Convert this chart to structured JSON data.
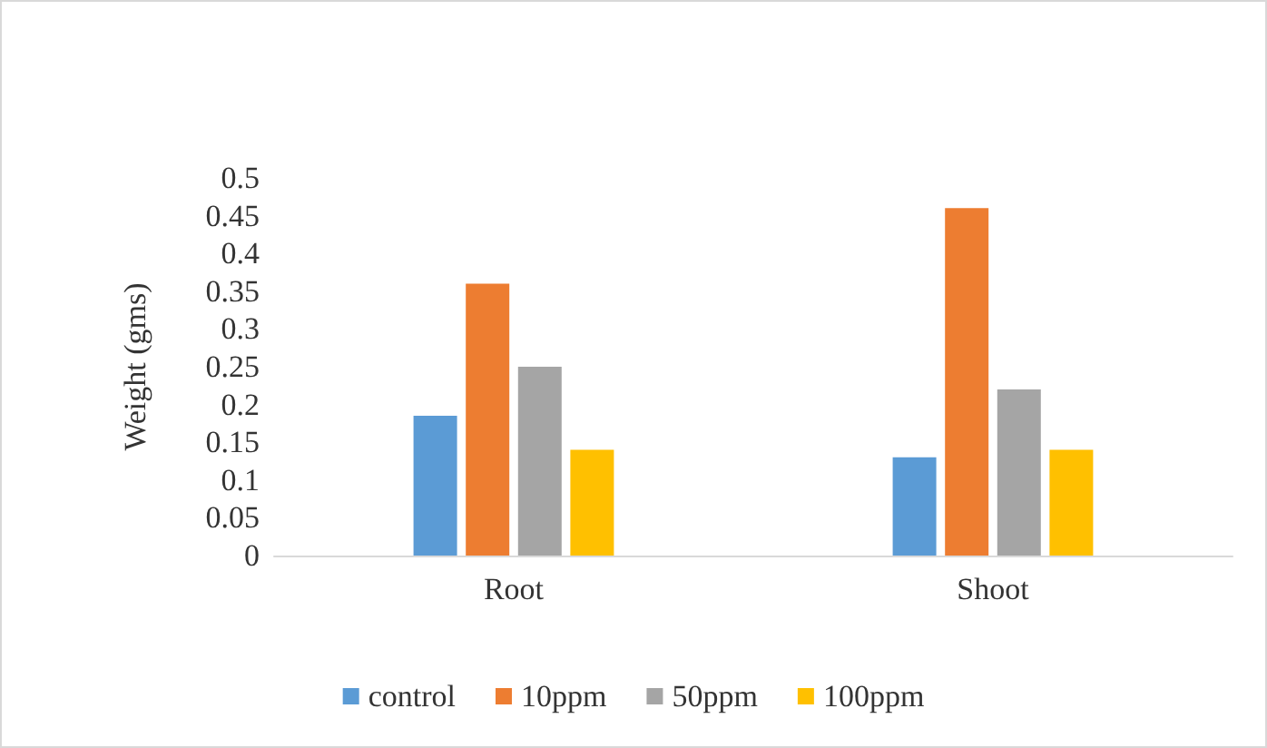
{
  "chart_data": {
    "type": "bar",
    "ylabel": "Weight (gms)",
    "categories": [
      "Root",
      "Shoot"
    ],
    "series": [
      {
        "name": "control",
        "color": "#5b9bd5",
        "values": [
          0.185,
          0.13
        ]
      },
      {
        "name": "10ppm",
        "color": "#ed7d31",
        "values": [
          0.36,
          0.46
        ]
      },
      {
        "name": "50ppm",
        "color": "#a5a5a5",
        "values": [
          0.25,
          0.22
        ]
      },
      {
        "name": "100ppm",
        "color": "#ffc000",
        "values": [
          0.14,
          0.14
        ]
      }
    ],
    "ylim": [
      0,
      0.5
    ],
    "yticks": [
      0,
      0.05,
      0.1,
      0.15,
      0.2,
      0.25,
      0.3,
      0.35,
      0.4,
      0.45,
      0.5
    ],
    "grid": false,
    "legend": "bottom"
  }
}
